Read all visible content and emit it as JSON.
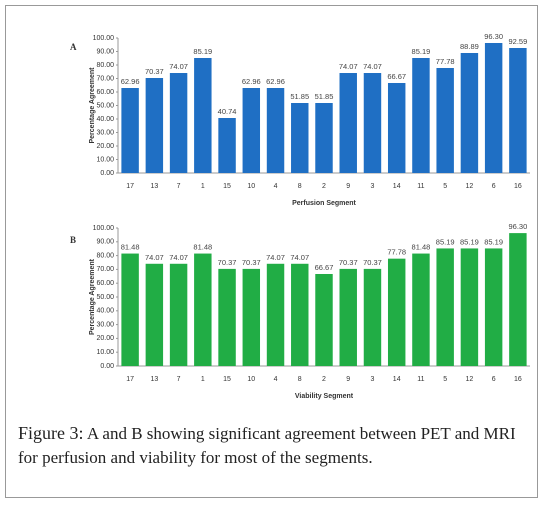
{
  "chart_data": [
    {
      "type": "bar",
      "title": "A",
      "xlabel": "Perfusion Segment",
      "ylabel": "Percentage Agreement",
      "color": "#1f6fc4",
      "categories": [
        "17",
        "13",
        "7",
        "1",
        "15",
        "10",
        "4",
        "8",
        "2",
        "9",
        "3",
        "14",
        "11",
        "5",
        "12",
        "6",
        "16"
      ],
      "values": [
        62.96,
        70.37,
        74.07,
        85.19,
        40.74,
        62.96,
        62.96,
        51.85,
        51.85,
        74.07,
        74.07,
        66.67,
        85.19,
        77.78,
        88.89,
        96.3,
        92.59
      ],
      "value_labels": [
        "62.96",
        "70.37",
        "74.07",
        "85.19",
        "40.74",
        "62.96",
        "62.96",
        "51.85",
        "51.85",
        "74.07",
        "74.07",
        "66.67",
        "85.19",
        "77.78",
        "88.89",
        "96.30",
        "92.59"
      ],
      "ylim": [
        0,
        100
      ],
      "yticks": [
        {
          "value": 0,
          "label": "0.00"
        },
        {
          "value": 10,
          "label": "10.00"
        },
        {
          "value": 20,
          "label": "20.00"
        },
        {
          "value": 30,
          "label": "30.00"
        },
        {
          "value": 40,
          "label": "40.00"
        },
        {
          "value": 50,
          "label": "50.00"
        },
        {
          "value": 60,
          "label": "60.00"
        },
        {
          "value": 70,
          "label": "70.00"
        },
        {
          "value": 80,
          "label": "80.00"
        },
        {
          "value": 90,
          "label": "90.00"
        },
        {
          "value": 100,
          "label": "100.00"
        }
      ]
    },
    {
      "type": "bar",
      "title": "B",
      "xlabel": "Viability Segment",
      "ylabel": "Percentage Agreement",
      "color": "#21ad45",
      "categories": [
        "17",
        "13",
        "7",
        "1",
        "15",
        "10",
        "4",
        "8",
        "2",
        "9",
        "3",
        "14",
        "11",
        "5",
        "12",
        "6",
        "16"
      ],
      "values": [
        81.48,
        74.07,
        74.07,
        81.48,
        70.37,
        70.37,
        74.07,
        74.07,
        66.67,
        70.37,
        70.37,
        77.78,
        81.48,
        85.19,
        85.19,
        85.19,
        96.3
      ],
      "value_labels": [
        "81.48",
        "74.07",
        "74.07",
        "81.48",
        "70.37",
        "70.37",
        "74.07",
        "74.07",
        "66.67",
        "70.37",
        "70.37",
        "77.78",
        "81.48",
        "85.19",
        "85.19",
        "85.19",
        "96.30"
      ],
      "ylim": [
        0,
        100
      ],
      "yticks": [
        {
          "value": 0,
          "label": "0.00"
        },
        {
          "value": 10,
          "label": "10.00"
        },
        {
          "value": 20,
          "label": "20.00"
        },
        {
          "value": 30,
          "label": "30.00"
        },
        {
          "value": 40,
          "label": "40.00"
        },
        {
          "value": 50,
          "label": "50.00"
        },
        {
          "value": 60,
          "label": "60.00"
        },
        {
          "value": 70,
          "label": "70.00"
        },
        {
          "value": 80,
          "label": "80.00"
        },
        {
          "value": 90,
          "label": "90.00"
        },
        {
          "value": 100,
          "label": "100.00"
        }
      ]
    }
  ],
  "caption": {
    "label": "Figure 3:",
    "text": "A and B showing significant agreement between PET and MRI for perfusion and viability for most of the segments."
  }
}
